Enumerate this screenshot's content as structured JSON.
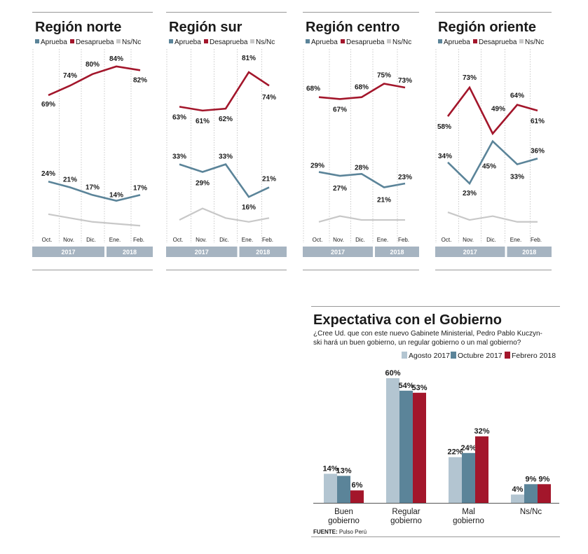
{
  "colors": {
    "aprueba": "#5b8499",
    "desaprueba": "#a3162b",
    "nsnc": "#c8c8c8",
    "barra_anio": "#a6b4c1",
    "agosto": "#b3c5d1",
    "octubre": "#5b8499",
    "febrero": "#a3162b"
  },
  "legend": {
    "aprueba": "Aprueba",
    "desaprueba": "Desaprueba",
    "nsnc": "Ns/Nc"
  },
  "months": [
    "Oct.",
    "Nov.",
    "Dic.",
    "Ene.",
    "Feb."
  ],
  "years": {
    "y2017": "2017",
    "y2018": "2018"
  },
  "chart_data": [
    {
      "type": "line",
      "title": "Región norte",
      "categories": [
        "Oct.",
        "Nov.",
        "Dic.",
        "Ene.",
        "Feb."
      ],
      "ylim": [
        0,
        100
      ],
      "series": [
        {
          "name": "Desaprueba",
          "values": [
            69,
            74,
            80,
            84,
            82
          ],
          "labels": [
            "69%",
            "74%",
            "80%",
            "84%",
            "82%"
          ]
        },
        {
          "name": "Aprueba",
          "values": [
            24,
            21,
            17,
            14,
            17
          ],
          "labels": [
            "24%",
            "21%",
            "17%",
            "14%",
            "17%"
          ]
        },
        {
          "name": "Ns/Nc",
          "values": [
            7,
            5,
            3,
            2,
            1
          ]
        }
      ]
    },
    {
      "type": "line",
      "title": "Región sur",
      "categories": [
        "Oct.",
        "Nov.",
        "Dic.",
        "Ene.",
        "Feb."
      ],
      "ylim": [
        0,
        100
      ],
      "series": [
        {
          "name": "Desaprueba",
          "values": [
            63,
            61,
            62,
            81,
            74
          ],
          "labels": [
            "63%",
            "61%",
            "62%",
            "81%",
            "74%"
          ]
        },
        {
          "name": "Aprueba",
          "values": [
            33,
            29,
            33,
            16,
            21
          ],
          "labels": [
            "33%",
            "29%",
            "33%",
            "16%",
            "21%"
          ]
        },
        {
          "name": "Ns/Nc",
          "values": [
            4,
            10,
            5,
            3,
            5
          ]
        }
      ]
    },
    {
      "type": "line",
      "title": "Región centro",
      "categories": [
        "Oct.",
        "Nov.",
        "Dic.",
        "Ene.",
        "Feb."
      ],
      "ylim": [
        0,
        100
      ],
      "series": [
        {
          "name": "Desaprueba",
          "values": [
            68,
            67,
            68,
            75,
            73
          ],
          "labels": [
            "68%",
            "67%",
            "68%",
            "75%",
            "73%"
          ]
        },
        {
          "name": "Aprueba",
          "values": [
            29,
            27,
            28,
            21,
            23
          ],
          "labels": [
            "29%",
            "27%",
            "28%",
            "21%",
            "23%"
          ]
        },
        {
          "name": "Ns/Nc",
          "values": [
            3,
            6,
            4,
            4,
            4
          ]
        }
      ]
    },
    {
      "type": "line",
      "title": "Región oriente",
      "categories": [
        "Oct.",
        "Nov.",
        "Dic.",
        "Ene.",
        "Feb."
      ],
      "ylim": [
        0,
        100
      ],
      "series": [
        {
          "name": "Desaprueba",
          "values": [
            58,
            73,
            49,
            64,
            61
          ],
          "labels": [
            "58%",
            "73%",
            "49%",
            "64%",
            "61%"
          ]
        },
        {
          "name": "Aprueba",
          "values": [
            34,
            23,
            45,
            33,
            36
          ],
          "labels": [
            "34%",
            "23%",
            "45%",
            "33%",
            "36%"
          ]
        },
        {
          "name": "Ns/Nc",
          "values": [
            8,
            4,
            6,
            3,
            3
          ]
        }
      ]
    },
    {
      "type": "bar",
      "title": "Expectativa con el Gobierno",
      "subtitle_lines": [
        "¿Cree Ud. que con este nuevo Gabinete Ministerial, Pedro Pablo Kuczyn-",
        "ski hará un buen gobierno, un regular gobierno o un mal gobierno?"
      ],
      "categories": [
        [
          "Buen",
          "gobierno"
        ],
        [
          "Regular",
          "gobierno"
        ],
        [
          "Mal",
          "gobierno"
        ],
        [
          "Ns/Nc"
        ]
      ],
      "ylim": [
        0,
        65
      ],
      "series": [
        {
          "name": "Agosto 2017",
          "values": [
            14,
            60,
            22,
            4
          ]
        },
        {
          "name": "Octubre 2017",
          "values": [
            13,
            54,
            24,
            9
          ]
        },
        {
          "name": "Febrero 2018",
          "values": [
            6,
            53,
            32,
            9
          ]
        }
      ],
      "source_label": "FUENTE:",
      "source_text": "Pulso Perú"
    }
  ]
}
